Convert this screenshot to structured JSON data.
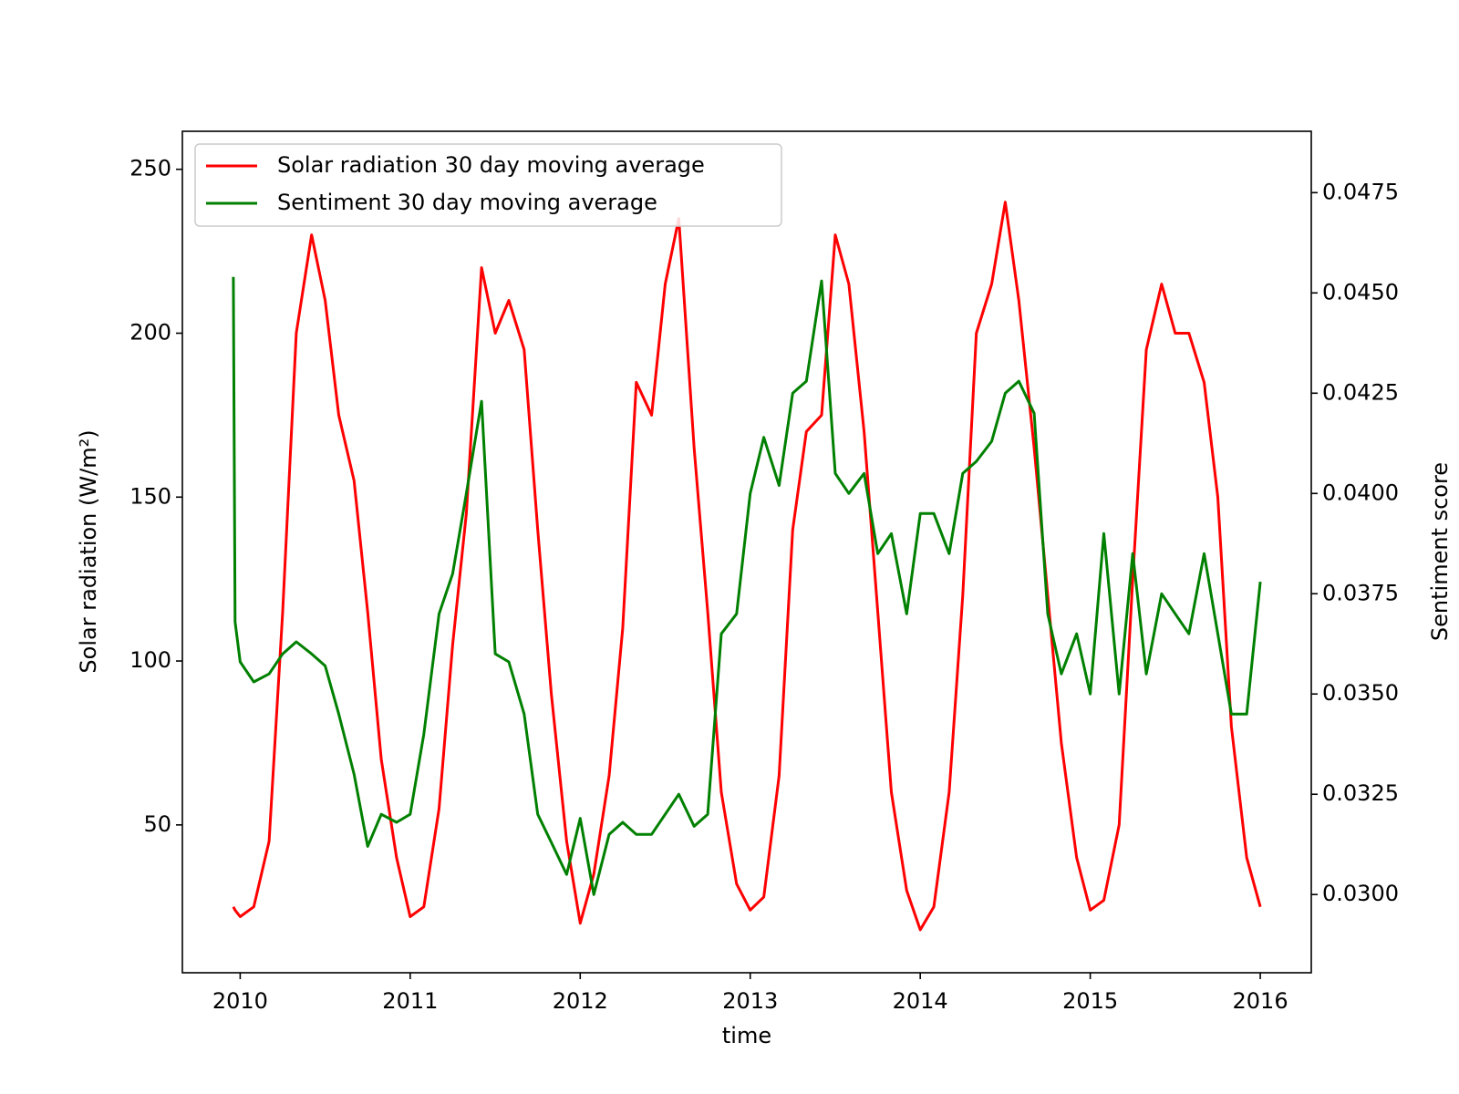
{
  "chart_data": {
    "type": "line",
    "x_label": "time",
    "y_label": "Solar radiation (W/m²)",
    "y2_label": "Sentiment score",
    "legend": "upper left",
    "x": [
      2009.96,
      2009.97,
      2010.0,
      2010.08,
      2010.17,
      2010.25,
      2010.33,
      2010.42,
      2010.5,
      2010.58,
      2010.67,
      2010.75,
      2010.83,
      2010.92,
      2011.0,
      2011.08,
      2011.17,
      2011.25,
      2011.33,
      2011.42,
      2011.5,
      2011.58,
      2011.67,
      2011.75,
      2011.83,
      2011.92,
      2012.0,
      2012.08,
      2012.17,
      2012.25,
      2012.33,
      2012.42,
      2012.5,
      2012.58,
      2012.67,
      2012.75,
      2012.83,
      2012.92,
      2013.0,
      2013.08,
      2013.17,
      2013.25,
      2013.33,
      2013.42,
      2013.5,
      2013.58,
      2013.67,
      2013.75,
      2013.83,
      2013.92,
      2014.0,
      2014.08,
      2014.17,
      2014.25,
      2014.33,
      2014.42,
      2014.5,
      2014.58,
      2014.67,
      2014.75,
      2014.83,
      2014.92,
      2015.0,
      2015.08,
      2015.17,
      2015.25,
      2015.33,
      2015.42,
      2015.5,
      2015.58,
      2015.67,
      2015.75,
      2015.83,
      2015.92,
      2016.0
    ],
    "series": [
      {
        "name": "Solar radiation 30 day moving average",
        "color": "#ff0000",
        "axis": "y",
        "values": [
          25,
          24,
          22,
          25,
          45,
          115,
          200,
          230,
          210,
          175,
          155,
          115,
          70,
          40,
          22,
          25,
          55,
          105,
          145,
          220,
          200,
          210,
          195,
          140,
          90,
          45,
          20,
          35,
          65,
          110,
          185,
          175,
          215,
          235,
          165,
          115,
          60,
          32,
          24,
          28,
          65,
          140,
          170,
          175,
          230,
          215,
          170,
          115,
          60,
          30,
          18,
          25,
          60,
          120,
          200,
          215,
          240,
          210,
          165,
          120,
          75,
          40,
          24,
          27,
          50,
          125,
          195,
          215,
          200,
          200,
          185,
          150,
          80,
          40,
          25
        ]
      },
      {
        "name": "Sentiment 30 day moving average",
        "color": "#008000",
        "axis": "y2",
        "values": [
          0.0454,
          0.0368,
          0.0358,
          0.0353,
          0.0355,
          0.036,
          0.0363,
          0.036,
          0.0357,
          0.0345,
          0.033,
          0.0312,
          0.032,
          0.0318,
          0.032,
          0.034,
          0.037,
          0.038,
          0.04,
          0.0423,
          0.036,
          0.0358,
          0.0345,
          0.032,
          0.0313,
          0.0305,
          0.0319,
          0.03,
          0.0315,
          0.0318,
          0.0315,
          0.0315,
          0.032,
          0.0325,
          0.0317,
          0.032,
          0.0365,
          0.037,
          0.04,
          0.0414,
          0.0402,
          0.0425,
          0.0428,
          0.0453,
          0.0405,
          0.04,
          0.0405,
          0.0385,
          0.039,
          0.037,
          0.0395,
          0.0395,
          0.0385,
          0.0405,
          0.0408,
          0.0413,
          0.0425,
          0.0428,
          0.042,
          0.037,
          0.0355,
          0.0365,
          0.035,
          0.039,
          0.035,
          0.0385,
          0.0355,
          0.0375,
          0.037,
          0.0365,
          0.0385,
          0.0365,
          0.0345,
          0.0345,
          0.0378
        ]
      }
    ],
    "xlim": [
      2009.66,
      2016.3
    ],
    "xticks": [
      2010,
      2011,
      2012,
      2013,
      2014,
      2015,
      2016
    ],
    "ylim": [
      4.9,
      261.6
    ],
    "yticks": [
      50,
      100,
      150,
      200,
      250
    ],
    "y2lim": [
      0.02805,
      0.04903
    ],
    "y2ticks": [
      {
        "value": 0.03,
        "label": "0.0300"
      },
      0.0325,
      {
        "value": 0.035,
        "label": "0.0350"
      },
      0.0375,
      {
        "value": 0.04,
        "label": "0.0400"
      },
      0.0425,
      {
        "value": 0.045,
        "label": "0.0450"
      },
      0.0475
    ],
    "grid": false
  }
}
